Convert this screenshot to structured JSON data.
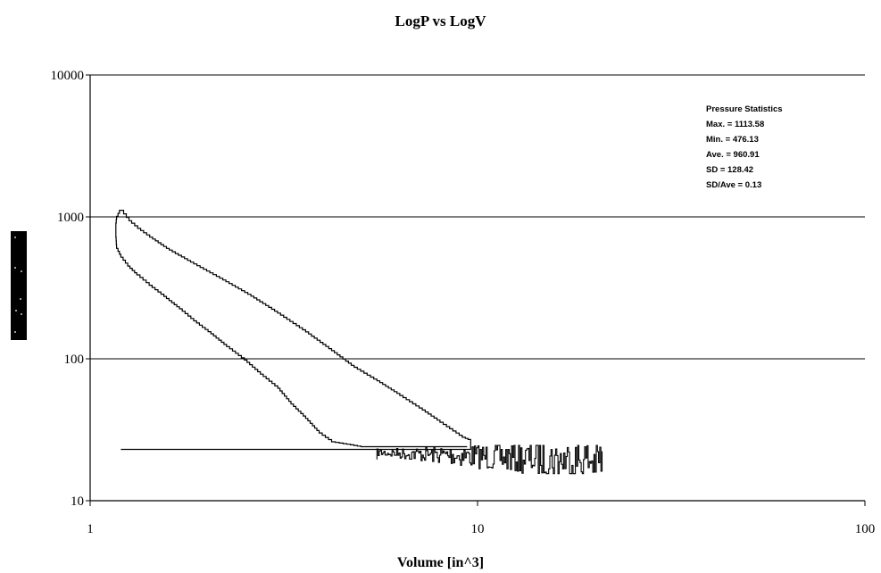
{
  "chart_data": {
    "type": "line",
    "title": "LogP vs LogV",
    "xlabel": "Volume [in^3]",
    "ylabel": "",
    "xscale": "log",
    "yscale": "log",
    "xlim": [
      1,
      100
    ],
    "ylim": [
      10,
      10000
    ],
    "x_ticks": [
      "1",
      "10",
      "100"
    ],
    "y_ticks": [
      "10",
      "100",
      "1000",
      "10000"
    ],
    "grid": "horizontal major gridlines",
    "series": [
      {
        "values_xy": [
          [
            1.2,
            23
          ],
          [
            9.6,
            23
          ],
          [
            9.6,
            27
          ],
          [
            9.3,
            28
          ],
          [
            8.8,
            31
          ],
          [
            8.0,
            37
          ],
          [
            7.2,
            45
          ],
          [
            6.3,
            57
          ],
          [
            5.5,
            72
          ],
          [
            4.8,
            90
          ],
          [
            4.2,
            118
          ],
          [
            3.6,
            160
          ],
          [
            3.1,
            210
          ],
          [
            2.6,
            285
          ],
          [
            2.2,
            370
          ],
          [
            1.85,
            480
          ],
          [
            1.6,
            600
          ],
          [
            1.45,
            720
          ],
          [
            1.35,
            830
          ],
          [
            1.28,
            940
          ],
          [
            1.24,
            1050
          ],
          [
            1.22,
            1113.58
          ],
          [
            1.19,
            1060
          ],
          [
            1.17,
            960
          ],
          [
            1.165,
            850
          ],
          [
            1.165,
            720
          ],
          [
            1.17,
            600
          ],
          [
            1.2,
            520
          ],
          [
            1.25,
            450
          ],
          [
            1.32,
            390
          ],
          [
            1.42,
            330
          ],
          [
            1.55,
            275
          ],
          [
            1.7,
            225
          ],
          [
            1.85,
            185
          ],
          [
            2.05,
            150
          ],
          [
            2.25,
            122
          ],
          [
            2.5,
            98
          ],
          [
            2.75,
            78
          ],
          [
            3.05,
            62
          ],
          [
            3.3,
            48
          ],
          [
            3.6,
            38
          ],
          [
            3.9,
            30
          ],
          [
            4.2,
            26
          ],
          [
            4.6,
            25
          ],
          [
            5.0,
            24
          ],
          [
            5.6,
            24
          ],
          [
            6.5,
            24
          ],
          [
            7.5,
            24
          ],
          [
            8.5,
            24
          ],
          [
            9.4,
            24
          ]
        ]
      }
    ],
    "noise_region": {
      "x_range": [
        5.5,
        21
      ],
      "y_range": [
        15.5,
        24.5
      ]
    },
    "pressure_statistics": {
      "heading": "Pressure Statistics",
      "lines": [
        "Max. = 1113.58",
        "Min. = 476.13",
        "Ave. = 960.91",
        "SD = 128.42",
        "SD/Ave = 0.13"
      ]
    }
  },
  "colors": {
    "background": "#ffffff",
    "line": "#000000",
    "y_axis_marker": "#000000"
  }
}
